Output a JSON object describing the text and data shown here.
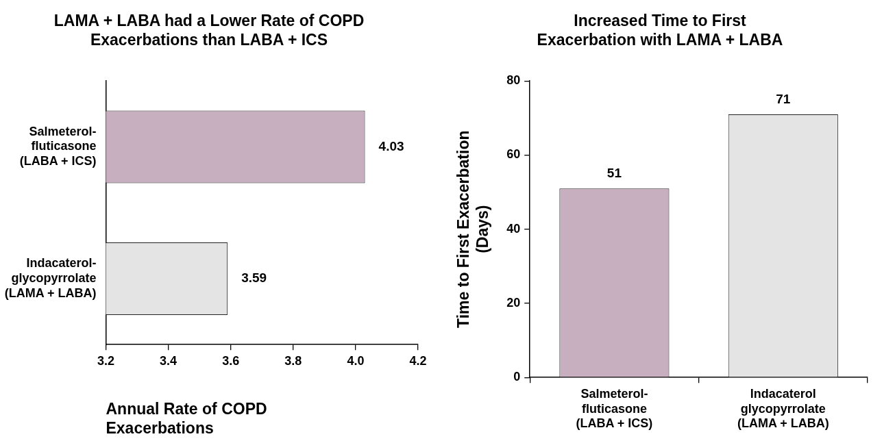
{
  "chart_data": [
    {
      "type": "bar",
      "orientation": "horizontal",
      "title": "LAMA + LABA had a Lower Rate of COPD\nExacerbations than LABA + ICS",
      "xlabel": "Annual Rate of COPD\nExacerbations",
      "categories": [
        "Salmeterol-\nfluticasone\n(LABA + ICS)",
        "Indacaterol-\nglycopyrrolate\n(LAMA + LABA)"
      ],
      "values": [
        4.03,
        3.59
      ],
      "colors": [
        "#c7afbf",
        "#e4e4e4"
      ],
      "xlim": [
        3.2,
        4.2
      ],
      "xticks": [
        {
          "value": 3.2,
          "label": "3.2"
        },
        {
          "value": 3.4,
          "label": "3.4"
        },
        {
          "value": 3.6,
          "label": "3.6"
        },
        {
          "value": 3.8,
          "label": "3.8"
        },
        {
          "value": 4.0,
          "label": "4.0"
        },
        {
          "value": 4.2,
          "label": "4.2"
        }
      ],
      "data_labels": true,
      "grid": false,
      "legend": false
    },
    {
      "type": "bar",
      "title": "Increased Time to First\nExacerbation with LAMA + LABA",
      "ylabel": "Time to First Exacerbation\n(Days)",
      "categories": [
        "Salmeterol-\nfluticasone\n(LABA + ICS)",
        "Indacaterol\nglycopyrrolate\n(LAMA + LABA)"
      ],
      "values": [
        51,
        71
      ],
      "colors": [
        "#c7afbf",
        "#e4e4e4"
      ],
      "ylim": [
        0,
        80
      ],
      "yticks": [
        0,
        20,
        40,
        60,
        80
      ],
      "data_labels": true,
      "grid": false,
      "legend": false
    }
  ]
}
